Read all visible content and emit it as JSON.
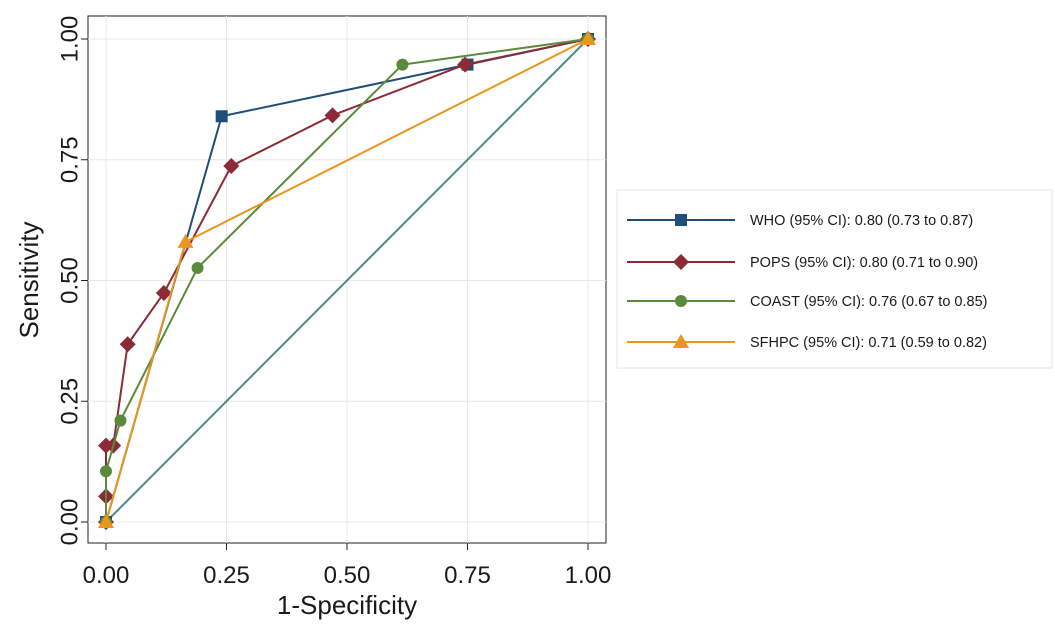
{
  "chart_data": {
    "type": "line",
    "xlabel": "1-Specificity",
    "ylabel": "Sensitivity",
    "xlim": [
      0,
      1
    ],
    "ylim": [
      0,
      1
    ],
    "x_ticks": [
      "0.00",
      "0.25",
      "0.50",
      "0.75",
      "1.00"
    ],
    "y_ticks": [
      "0.00",
      "0.25",
      "0.50",
      "0.75",
      "1.00"
    ],
    "grid": true,
    "legend_position": "right",
    "reference_line": {
      "x": [
        0,
        1
      ],
      "y": [
        0,
        1
      ],
      "color": "#4c8c88"
    },
    "series": [
      {
        "name": "WHO (95% CI): 0.80 (0.73 to 0.87)",
        "color": "#1f4e79",
        "marker": "square",
        "x": [
          0,
          0.24,
          0.75,
          1
        ],
        "y": [
          0,
          0.84,
          0.947,
          1
        ]
      },
      {
        "name": "POPS (95% CI): 0.80 (0.71 to 0.90)",
        "color": "#8b2b35",
        "marker": "diamond",
        "x": [
          0,
          0,
          0,
          0.015,
          0.045,
          0.12,
          0.26,
          0.47,
          0.745,
          1
        ],
        "y": [
          0,
          0.053,
          0.158,
          0.158,
          0.368,
          0.474,
          0.737,
          0.842,
          0.947,
          1
        ]
      },
      {
        "name": "COAST (95% CI): 0.76  (0.67 to 0.85)",
        "color": "#5b8a3c",
        "marker": "circle",
        "x": [
          0,
          0,
          0.03,
          0.19,
          0.615,
          1
        ],
        "y": [
          0,
          0.105,
          0.21,
          0.526,
          0.947,
          1
        ]
      },
      {
        "name": "SFHPC (95% CI): 0.71  (0.59 to 0.82)",
        "color": "#e8961e",
        "marker": "triangle",
        "x": [
          0,
          0.165,
          1
        ],
        "y": [
          0,
          0.58,
          1
        ]
      }
    ]
  }
}
